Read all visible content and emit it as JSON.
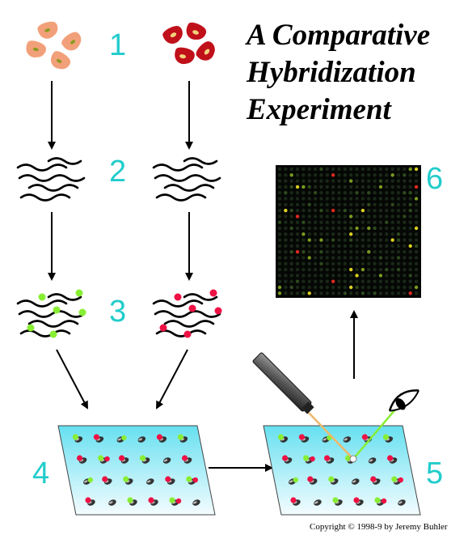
{
  "title": {
    "line1": "A Comparative",
    "line2": "Hybridization",
    "line3": "Experiment"
  },
  "steps": [
    "1",
    "2",
    "3",
    "4",
    "5",
    "6"
  ],
  "copyright": "Copyright © 1998-9 by Jeremy Buhler",
  "colors": {
    "step_number": "#22cccc",
    "sample_a_cell": "#f2a07a",
    "sample_b_cell": "#c0101a",
    "cell_nucleus": "#8a9a20",
    "green_label": "#88ee33",
    "red_label": "#ee1144",
    "slide_top": "#66e0f0",
    "slide_bottom": "#f4fcff",
    "scanner_beam": "#f0b86a",
    "emission_beam": "#88ee33"
  },
  "icons": [
    "cell-icon",
    "dna-strand-icon",
    "labeled-dna-icon",
    "microarray-slide-icon",
    "laser-icon",
    "eye-icon",
    "scan-image-icon"
  ]
}
